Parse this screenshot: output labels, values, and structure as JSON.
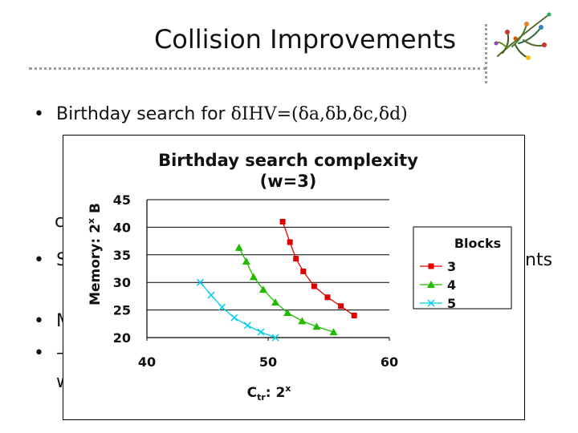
{
  "slide": {
    "title": "Collision Improvements",
    "bullet1_prefix": "Birthday search for ",
    "bullet1_formula": "δIHV=(δa,δb,δc,δd)",
    "frag_c": "c",
    "frag_s": "S",
    "frag_nts": "nts",
    "frag_m": "M",
    "frag_dash": "–",
    "frag_w": "w"
  },
  "chart_data": {
    "type": "line",
    "title_line1": "Birthday search complexity",
    "title_line2": "(w=3)",
    "xlabel_base": "C",
    "xlabel_sub": "tr",
    "xlabel_rest": ": 2",
    "xlabel_sup": "x",
    "ylabel_base": "Memory: 2",
    "ylabel_sup": "x",
    "ylabel_unit": " B",
    "xlim": [
      40,
      60
    ],
    "ylim": [
      20,
      45
    ],
    "x_ticks": [
      "40",
      "50",
      "60"
    ],
    "y_ticks": [
      "20",
      "25",
      "30",
      "35",
      "40",
      "45"
    ],
    "legend_title": "Blocks",
    "series": [
      {
        "name": "3",
        "color": "#dd0000",
        "marker": "square",
        "points": [
          [
            51.2,
            41
          ],
          [
            51.8,
            37.3
          ],
          [
            52.3,
            34.3
          ],
          [
            52.9,
            32
          ],
          [
            53.8,
            29.3
          ],
          [
            54.9,
            27.3
          ],
          [
            56.0,
            25.7
          ],
          [
            57.1,
            24
          ]
        ]
      },
      {
        "name": "4",
        "color": "#22bb00",
        "marker": "triangle",
        "points": [
          [
            47.6,
            36.3
          ],
          [
            48.2,
            33.8
          ],
          [
            48.8,
            31
          ],
          [
            49.6,
            28.7
          ],
          [
            50.6,
            26.4
          ],
          [
            51.6,
            24.5
          ],
          [
            52.8,
            23
          ],
          [
            54.0,
            22
          ],
          [
            55.4,
            21
          ]
        ]
      },
      {
        "name": "5",
        "color": "#00ccee",
        "marker": "x",
        "points": [
          [
            44.4,
            30
          ],
          [
            45.3,
            27.7
          ],
          [
            46.2,
            25.5
          ],
          [
            47.2,
            23.6
          ],
          [
            48.3,
            22.2
          ],
          [
            49.4,
            21
          ],
          [
            50.6,
            20
          ]
        ]
      }
    ]
  }
}
